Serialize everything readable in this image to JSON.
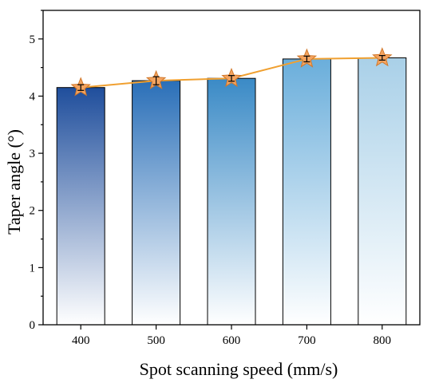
{
  "chart_data": {
    "type": "bar",
    "categories": [
      "400",
      "500",
      "600",
      "700",
      "800"
    ],
    "values": [
      4.15,
      4.27,
      4.31,
      4.65,
      4.67
    ],
    "errors": [
      0.05,
      0.07,
      0.05,
      0.05,
      0.04
    ],
    "xlabel": "Spot scanning speed (mm/s)",
    "ylabel": "Taper angle (°)",
    "ylim": [
      0,
      5.5
    ],
    "yticks": [
      "0",
      "1",
      "2",
      "3",
      "4",
      "5"
    ],
    "grid": false,
    "overlay_line": true,
    "marker": "star",
    "colors": {
      "bar_tops": [
        "#1f4e9c",
        "#2a6fb8",
        "#3a8ac6",
        "#6aaedb",
        "#a9d0e8"
      ],
      "bar_bottom": "#ffffff",
      "line": "#f0a030",
      "marker_fill": "#f4a460",
      "marker_edge": "#d2782a",
      "error_bar": "#000000"
    }
  }
}
